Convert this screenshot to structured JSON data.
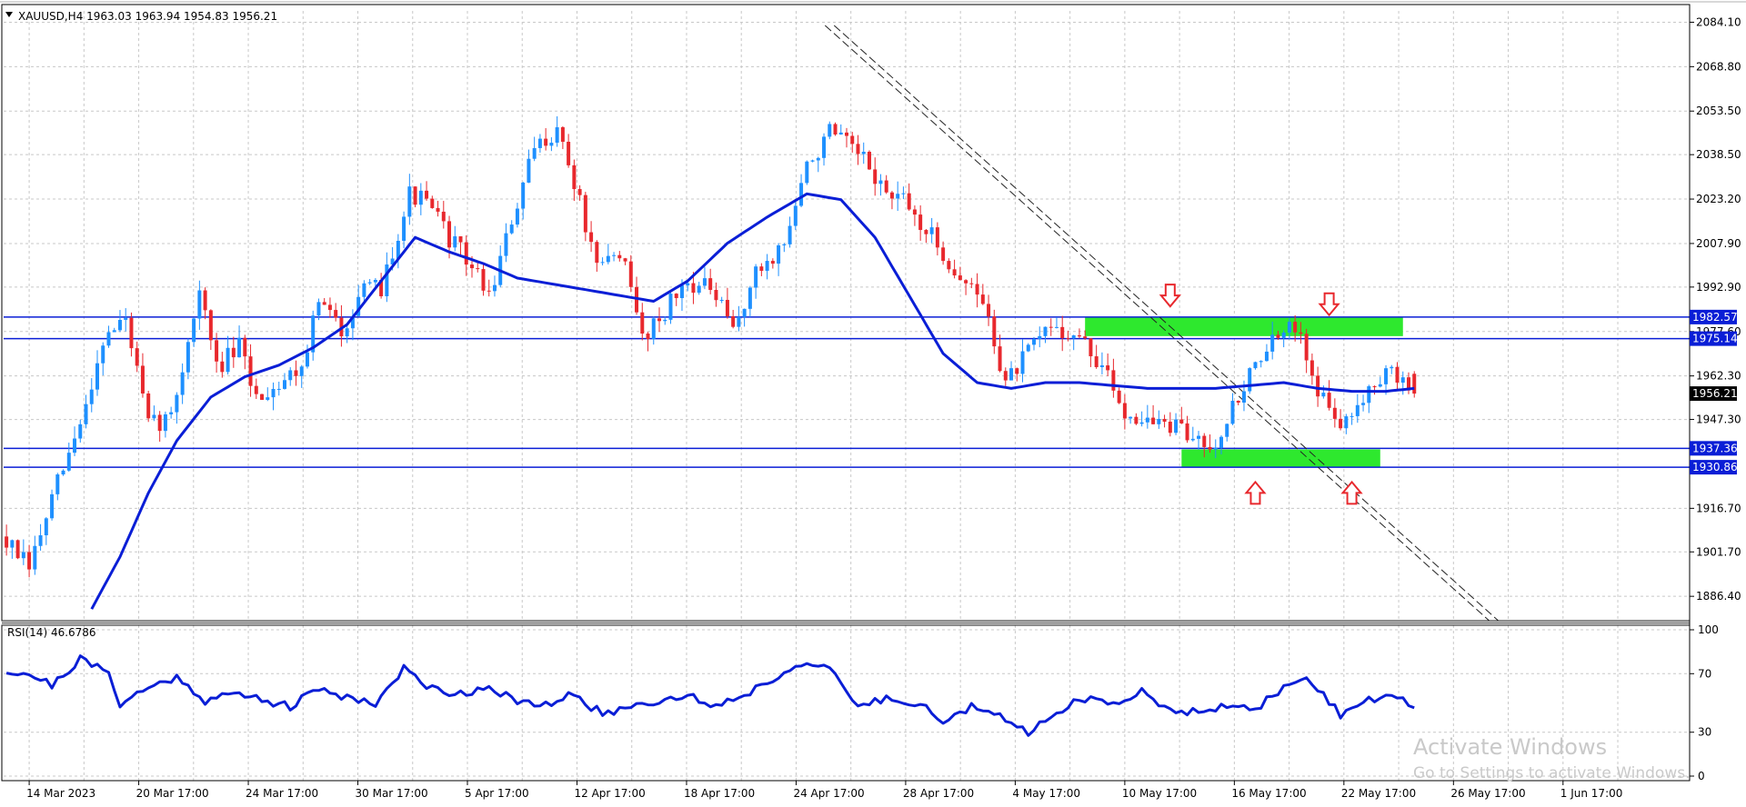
{
  "window": {
    "symbol_header": "XAUUSD,H4  1963.03 1963.94 1954.83 1956.21"
  },
  "colors": {
    "background": "#ffffff",
    "grid": "#c8c8c8",
    "bull_candle": "#1e90ff",
    "bear_candle": "#e8282d",
    "moving_average": "#0a1ed6",
    "level_line": "#0a1ed6",
    "zone_fill": "#2ee82e",
    "arrow": "#e8282d",
    "trendline": "#222222",
    "rsi_line": "#0a1ed6",
    "price_label_bg": "#0a1ed6",
    "current_price_bg": "#000000"
  },
  "watermark": {
    "line1": "Activate Windows",
    "line2": "Go to Settings to activate Windows."
  },
  "chart_data": [
    {
      "type": "candlestick",
      "symbol": "XAUUSD",
      "timeframe": "H4",
      "ohlc_last": {
        "open": 1963.03,
        "high": 1963.94,
        "low": 1954.83,
        "close": 1956.21
      },
      "current_price": "1956.21",
      "ylim": [
        1878.0,
        2088.0
      ],
      "ytick_labels": [
        "2084.10",
        "2068.80",
        "2053.50",
        "2038.50",
        "2023.20",
        "2007.90",
        "1992.90",
        "1977.60",
        "1962.30",
        "1947.30",
        "1916.70",
        "1901.70",
        "1886.40"
      ],
      "xtick_labels": [
        "14 Mar 2023",
        "20 Mar 17:00",
        "24 Mar 17:00",
        "30 Mar 17:00",
        "5 Apr 17:00",
        "12 Apr 17:00",
        "18 Apr 17:00",
        "24 Apr 17:00",
        "28 Apr 17:00",
        "4 May 17:00",
        "10 May 17:00",
        "16 May 17:00",
        "22 May 17:00",
        "26 May 17:00",
        "1 Jun 17:00"
      ],
      "close_path": [
        [
          0,
          1905
        ],
        [
          4,
          1896
        ],
        [
          9,
          1925
        ],
        [
          13,
          1945
        ],
        [
          17,
          1975
        ],
        [
          21,
          1982
        ],
        [
          25,
          1945
        ],
        [
          29,
          1948
        ],
        [
          34,
          1992
        ],
        [
          37,
          1965
        ],
        [
          41,
          1972
        ],
        [
          44,
          1955
        ],
        [
          48,
          1960
        ],
        [
          52,
          1966
        ],
        [
          55,
          1988
        ],
        [
          59,
          1978
        ],
        [
          62,
          1990
        ],
        [
          66,
          1993
        ],
        [
          71,
          2025
        ],
        [
          74,
          2022
        ],
        [
          78,
          2010
        ],
        [
          82,
          2000
        ],
        [
          85,
          1990
        ],
        [
          89,
          2015
        ],
        [
          93,
          2040
        ],
        [
          97,
          2048
        ],
        [
          101,
          2022
        ],
        [
          104,
          1998
        ],
        [
          108,
          2006
        ],
        [
          112,
          1976
        ],
        [
          116,
          1985
        ],
        [
          120,
          1995
        ],
        [
          124,
          1992
        ],
        [
          128,
          1978
        ],
        [
          132,
          1997
        ],
        [
          137,
          2008
        ],
        [
          141,
          2034
        ],
        [
          145,
          2046
        ],
        [
          149,
          2040
        ],
        [
          152,
          2034
        ],
        [
          155,
          2025
        ],
        [
          158,
          2022
        ],
        [
          163,
          2010
        ],
        [
          168,
          1996
        ],
        [
          172,
          1988
        ],
        [
          176,
          1960
        ],
        [
          180,
          1970
        ],
        [
          184,
          1980
        ],
        [
          189,
          1975
        ],
        [
          193,
          1965
        ],
        [
          197,
          1950
        ],
        [
          201,
          1947
        ],
        [
          205,
          1945
        ],
        [
          209,
          1941
        ],
        [
          213,
          1940
        ],
        [
          217,
          1955
        ],
        [
          221,
          1970
        ],
        [
          224,
          1975
        ],
        [
          228,
          1980
        ],
        [
          230,
          1962
        ],
        [
          233,
          1950
        ],
        [
          236,
          1945
        ],
        [
          240,
          1960
        ],
        [
          243,
          1963
        ],
        [
          246,
          1961
        ],
        [
          248,
          1956.21
        ]
      ],
      "ma_path": [
        [
          15,
          1882
        ],
        [
          20,
          1900
        ],
        [
          25,
          1922
        ],
        [
          30,
          1940
        ],
        [
          36,
          1955
        ],
        [
          42,
          1962
        ],
        [
          48,
          1966
        ],
        [
          54,
          1972
        ],
        [
          60,
          1980
        ],
        [
          66,
          1995
        ],
        [
          72,
          2010
        ],
        [
          78,
          2005
        ],
        [
          84,
          2001
        ],
        [
          90,
          1996
        ],
        [
          96,
          1994
        ],
        [
          102,
          1992
        ],
        [
          108,
          1990
        ],
        [
          114,
          1988
        ],
        [
          120,
          1995
        ],
        [
          127,
          2008
        ],
        [
          134,
          2017
        ],
        [
          141,
          2025
        ],
        [
          147,
          2023
        ],
        [
          153,
          2010
        ],
        [
          159,
          1990
        ],
        [
          165,
          1970
        ],
        [
          171,
          1960
        ],
        [
          177,
          1958
        ],
        [
          183,
          1960
        ],
        [
          189,
          1960
        ],
        [
          195,
          1959
        ],
        [
          201,
          1958
        ],
        [
          207,
          1958
        ],
        [
          213,
          1958
        ],
        [
          219,
          1959
        ],
        [
          225,
          1960
        ],
        [
          231,
          1958
        ],
        [
          237,
          1957
        ],
        [
          243,
          1957
        ],
        [
          248,
          1958
        ]
      ],
      "levels": [
        {
          "label": "1982.57",
          "value": 1982.57
        },
        {
          "label": "1975.14",
          "value": 1975.14
        },
        {
          "label": "1937.36",
          "value": 1937.36
        },
        {
          "label": "1930.86",
          "value": 1930.86
        }
      ],
      "zones": [
        {
          "x_start": 190,
          "x_end": 246,
          "y_low": 1976.0,
          "y_high": 1982.5
        },
        {
          "x_start": 207,
          "x_end": 242,
          "y_low": 1931.0,
          "y_high": 1937.0
        }
      ],
      "arrows": [
        {
          "direction": "down",
          "x": 205,
          "price": 1990
        },
        {
          "direction": "down",
          "x": 233,
          "price": 1987
        },
        {
          "direction": "up",
          "x": 220,
          "price": 1922
        },
        {
          "direction": "up",
          "x": 237,
          "price": 1922
        }
      ],
      "trendline": {
        "x1": 145,
        "y1": 2083,
        "x2": 262,
        "y2": 1878
      }
    },
    {
      "type": "line",
      "indicator_label": "RSI(14) 46.6786",
      "ylim": [
        0,
        100
      ],
      "ytick_labels": [
        "100",
        "70",
        "30",
        "0"
      ],
      "ytick_values": [
        100,
        70,
        30,
        0
      ],
      "x": [
        0,
        4,
        8,
        13,
        18,
        20,
        25,
        30,
        35,
        40,
        45,
        50,
        55,
        60,
        65,
        70,
        75,
        80,
        85,
        90,
        95,
        100,
        105,
        110,
        115,
        120,
        125,
        130,
        135,
        140,
        145,
        150,
        155,
        160,
        165,
        170,
        175,
        180,
        185,
        190,
        195,
        200,
        205,
        210,
        215,
        220,
        225,
        230,
        235,
        240,
        245,
        248
      ],
      "values": [
        72,
        70,
        62,
        80,
        70,
        50,
        60,
        68,
        52,
        56,
        53,
        47,
        60,
        54,
        50,
        73,
        60,
        56,
        62,
        50,
        48,
        56,
        42,
        48,
        52,
        55,
        48,
        56,
        66,
        78,
        72,
        48,
        53,
        51,
        38,
        47,
        40,
        30,
        45,
        53,
        48,
        60,
        43,
        46,
        48,
        44,
        62,
        65,
        42,
        53,
        53,
        47
      ]
    }
  ]
}
